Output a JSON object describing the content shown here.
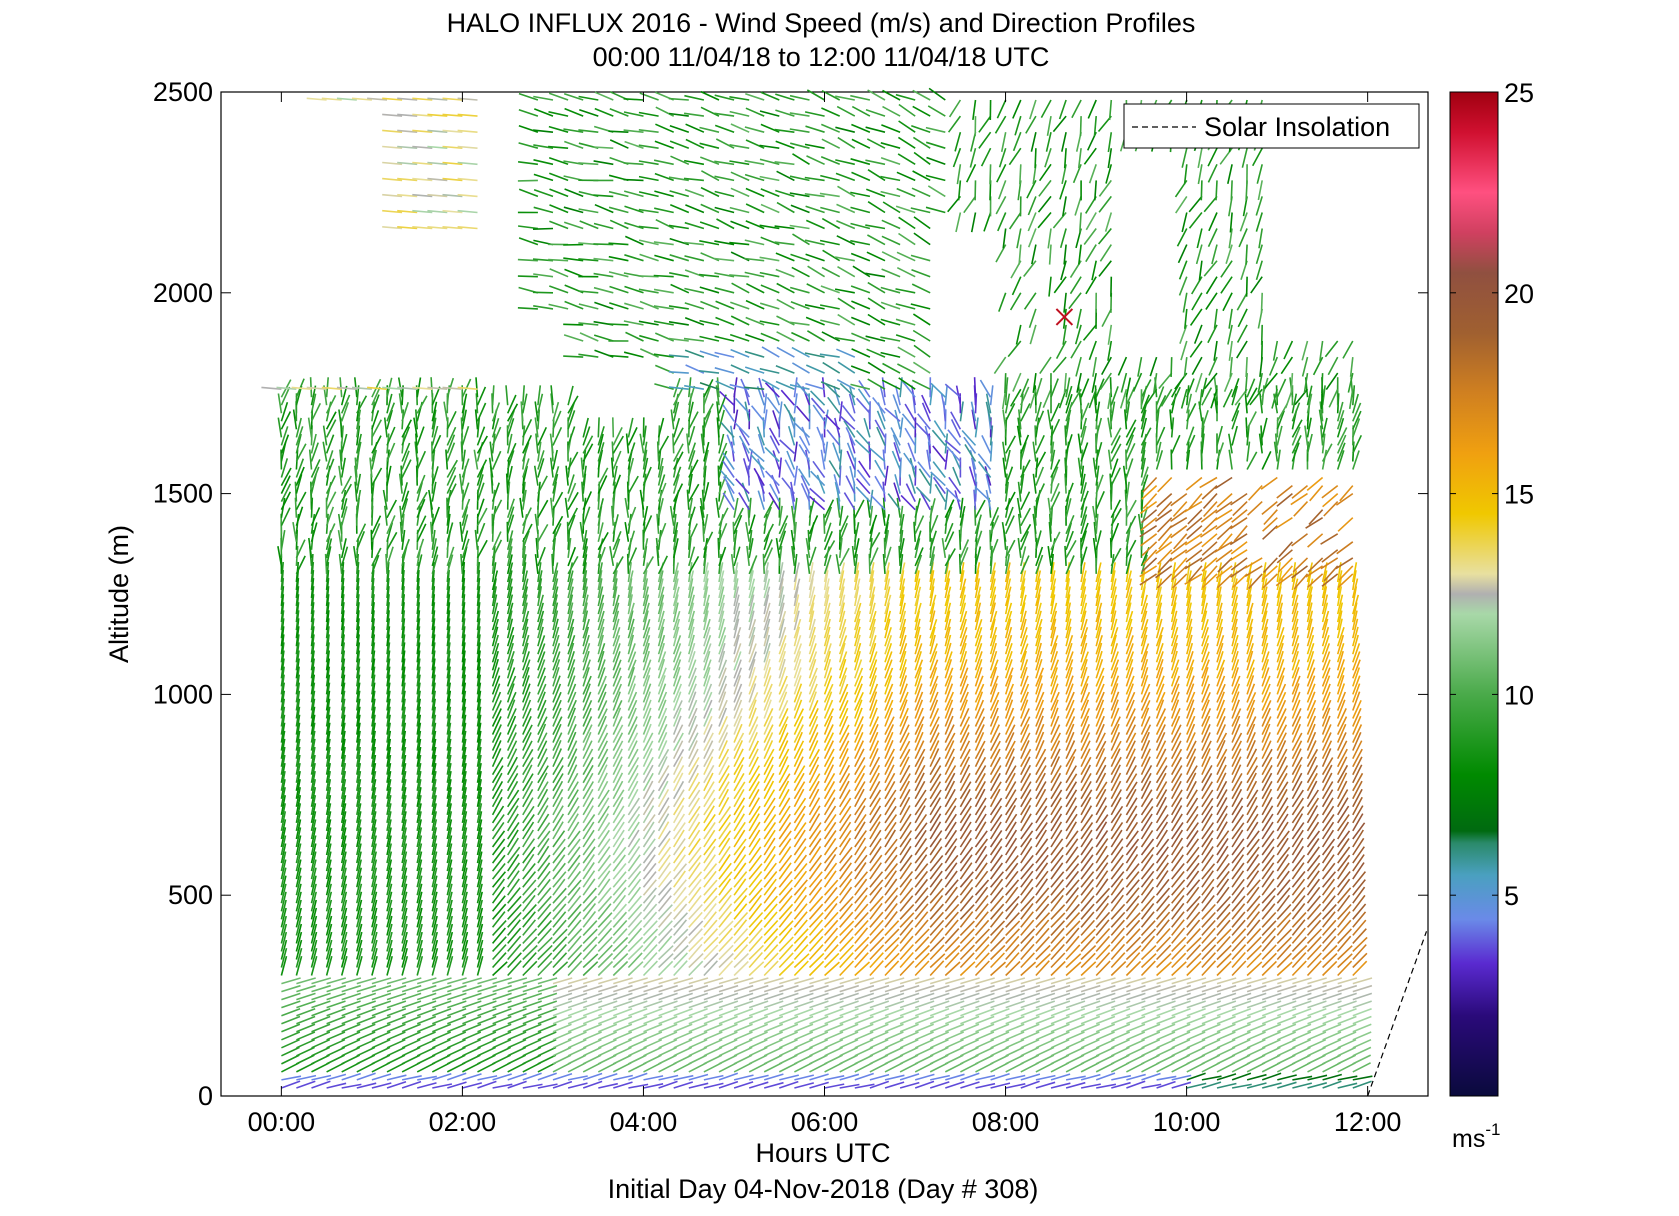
{
  "chart_data": {
    "type": "wind-barb-profile",
    "title": "HALO INFLUX 2016 - Wind Speed (m/s) and Direction Profiles",
    "subtitle": "00:00 11/04/18 to 12:00 11/04/18  UTC",
    "xlabel": "Hours UTC",
    "xlabel2": "Initial Day 04-Nov-2018 (Day # 308)",
    "ylabel": "Altitude (m)",
    "xlim": [
      -0.6667,
      12.6667
    ],
    "ylim": [
      0,
      2500
    ],
    "x_ticks": [
      0,
      2,
      4,
      6,
      8,
      10,
      12
    ],
    "x_tick_labels": [
      "00:00",
      "02:00",
      "04:00",
      "06:00",
      "08:00",
      "10:00",
      "12:00"
    ],
    "y_ticks": [
      0,
      500,
      1000,
      1500,
      2000,
      2500
    ],
    "y_tick_labels": [
      "0",
      "500",
      "1000",
      "1500",
      "2000",
      "2500"
    ],
    "legend": {
      "label": "Solar Insolation",
      "position": "top-right",
      "style": "dashed"
    },
    "solar_insolation_line": {
      "x": [
        12.0,
        12.65
      ],
      "y": [
        0,
        410
      ]
    },
    "colorbar": {
      "range": [
        0,
        25
      ],
      "ticks": [
        5,
        10,
        15,
        20,
        25
      ],
      "tick_labels": [
        "5",
        "10",
        "15",
        "20",
        "25"
      ],
      "unit_label": "ms",
      "unit_exponent": "-1",
      "stops": [
        {
          "v": 0,
          "color": "#0a0a3c"
        },
        {
          "v": 2,
          "color": "#2a0a7a"
        },
        {
          "v": 3.3,
          "color": "#5a2ad0"
        },
        {
          "v": 4.4,
          "color": "#6a8ae8"
        },
        {
          "v": 5.5,
          "color": "#4aa0c0"
        },
        {
          "v": 6.3,
          "color": "#2a8a6a"
        },
        {
          "v": 6.6,
          "color": "#006a10"
        },
        {
          "v": 8,
          "color": "#008a00"
        },
        {
          "v": 10,
          "color": "#4aaa4a"
        },
        {
          "v": 12,
          "color": "#a8d8a8"
        },
        {
          "v": 12.5,
          "color": "#b0b0b0"
        },
        {
          "v": 13,
          "color": "#e8e0a0"
        },
        {
          "v": 14.5,
          "color": "#f0c800"
        },
        {
          "v": 16,
          "color": "#f0a010"
        },
        {
          "v": 17.5,
          "color": "#d08020"
        },
        {
          "v": 19,
          "color": "#a06030"
        },
        {
          "v": 20.5,
          "color": "#905040"
        },
        {
          "v": 21.5,
          "color": "#d04060"
        },
        {
          "v": 22.5,
          "color": "#ff5080"
        },
        {
          "v": 24,
          "color": "#d01030"
        },
        {
          "v": 25,
          "color": "#a00010"
        }
      ]
    },
    "profiles_note_units": "times in hours UTC, altitudes in m, speed in m/s, direction in degrees (meteorological, wind from)",
    "time_step_h": 0.1667,
    "altitude_step_m": 20
  }
}
